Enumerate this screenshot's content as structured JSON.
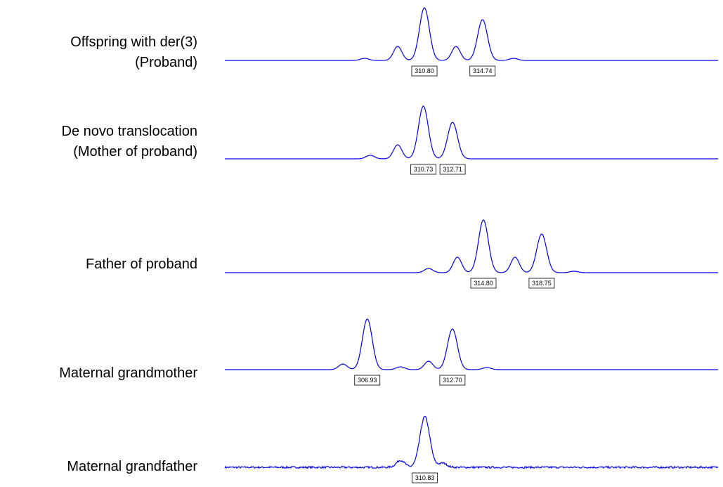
{
  "rows": [
    {
      "label": [
        "Offspring with der(3)",
        "(Proband)"
      ],
      "peaks": [
        {
          "value": 310.8,
          "label": "310.80"
        },
        {
          "value": 314.74,
          "label": "314.74"
        }
      ]
    },
    {
      "label": [
        "De novo translocation",
        "(Mother of proband)"
      ],
      "peaks": [
        {
          "value": 310.73,
          "label": "310.73"
        },
        {
          "value": 312.71,
          "label": "312.71"
        }
      ]
    },
    {
      "label": [
        "Father of proband"
      ],
      "peaks": [
        {
          "value": 314.8,
          "label": "314.80"
        },
        {
          "value": 318.75,
          "label": "318.75"
        }
      ]
    },
    {
      "label": [
        "Maternal grandmother"
      ],
      "peaks": [
        {
          "value": 306.93,
          "label": "306.93"
        },
        {
          "value": 312.7,
          "label": "312.70"
        }
      ]
    },
    {
      "label": [
        "Maternal grandfather"
      ],
      "peaks": [
        {
          "value": 310.83,
          "label": "310.83"
        }
      ]
    }
  ]
}
